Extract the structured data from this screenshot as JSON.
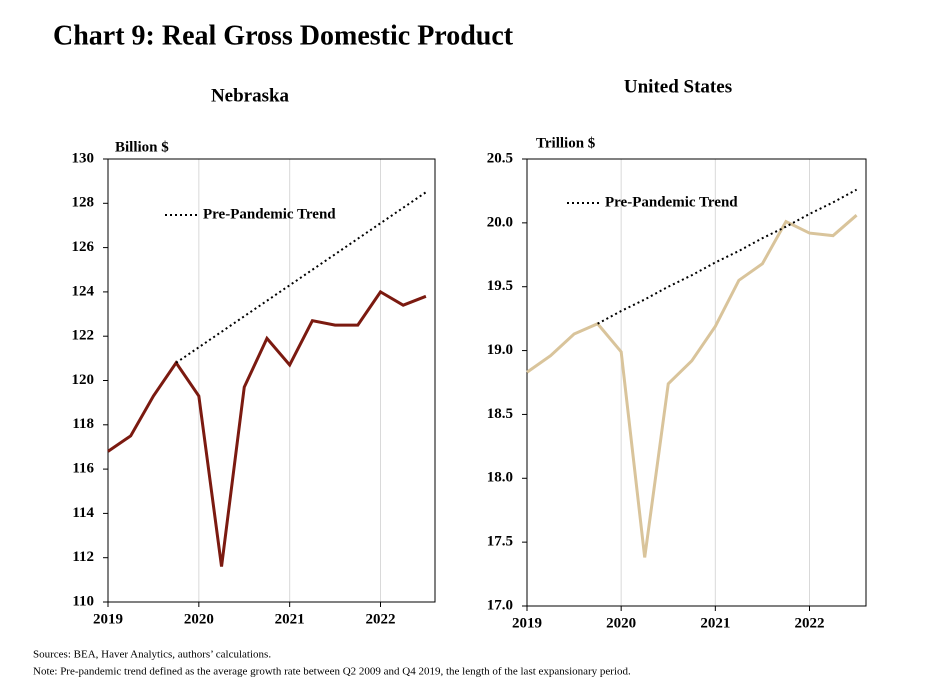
{
  "title": "Chart 9: Real Gross Domestic Product",
  "sources": "Sources: BEA,  Haver Analytics, authors’ calculations.",
  "note": "Note: Pre-pandemic  trend defined as the average growth rate between Q2 2009  and Q4 2019,  the length of the last expansionary period.",
  "chart_data": [
    {
      "type": "line",
      "title": "Nebraska",
      "y_label": "Billion $",
      "x": [
        2019,
        2019.25,
        2019.5,
        2019.75,
        2020,
        2020.25,
        2020.5,
        2020.75,
        2021,
        2021.25,
        2021.5,
        2021.75,
        2022,
        2022.25,
        2022.5
      ],
      "series": [
        {
          "color": "#7b1a10",
          "style": "solid",
          "values": [
            116.8,
            117.5,
            119.3,
            120.8,
            119.3,
            111.6,
            119.7,
            121.9,
            120.7,
            122.7,
            122.5,
            122.5,
            124.0,
            123.4,
            123.8
          ]
        },
        {
          "name": "Pre-Pandemic Trend",
          "color": "#000000",
          "style": "dotted",
          "values": [
            null,
            null,
            null,
            120.8,
            121.5,
            122.2,
            122.9,
            123.6,
            124.3,
            125.0,
            125.7,
            126.4,
            127.1,
            127.8,
            128.5
          ]
        }
      ],
      "xlim": [
        2019,
        2022.6
      ],
      "xticks": [
        2019,
        2020,
        2021,
        2022
      ],
      "ylim": [
        110,
        130
      ],
      "yticks": [
        110,
        112,
        114,
        116,
        118,
        120,
        122,
        124,
        126,
        128,
        130
      ],
      "grid": "x"
    },
    {
      "type": "line",
      "title": "United States",
      "y_label": "Trillion $",
      "x": [
        2019,
        2019.25,
        2019.5,
        2019.75,
        2020,
        2020.25,
        2020.5,
        2020.75,
        2021,
        2021.25,
        2021.5,
        2021.75,
        2022,
        2022.25,
        2022.5
      ],
      "series": [
        {
          "color": "#d9c49b",
          "style": "solid",
          "values": [
            18.83,
            18.96,
            19.13,
            19.21,
            18.99,
            17.38,
            18.74,
            18.92,
            19.19,
            19.55,
            19.68,
            20.01,
            19.92,
            19.9,
            20.06
          ]
        },
        {
          "name": "Pre-Pandemic Trend",
          "color": "#000000",
          "style": "dotted",
          "values": [
            null,
            null,
            null,
            19.21,
            19.31,
            19.4,
            19.5,
            19.59,
            19.69,
            19.78,
            19.88,
            19.97,
            20.07,
            20.16,
            20.26
          ]
        }
      ],
      "xlim": [
        2019,
        2022.6
      ],
      "xticks": [
        2019,
        2020,
        2021,
        2022
      ],
      "ylim": [
        17,
        20.5
      ],
      "yticks": [
        {
          "value": 17,
          "label": "17.0"
        },
        17.5,
        {
          "value": 18,
          "label": "18.0"
        },
        18.5,
        {
          "value": 19,
          "label": "19.0"
        },
        19.5,
        {
          "value": 20,
          "label": "20.0"
        },
        20.5
      ],
      "grid": "x"
    }
  ]
}
